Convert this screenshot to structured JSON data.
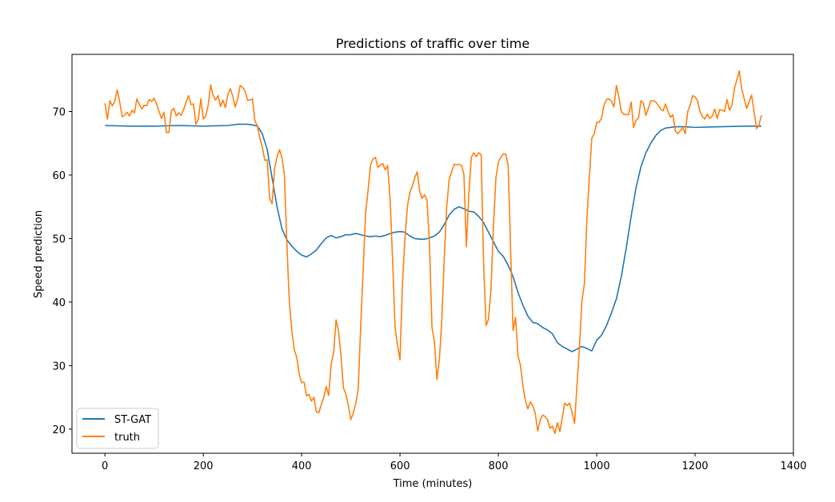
{
  "chart_data": {
    "type": "line",
    "title": "Predictions of traffic over time",
    "xlabel": "Time (minutes)",
    "ylabel": "Speed prediction",
    "xlim": [
      -67,
      1400
    ],
    "ylim": [
      16.2,
      79.0
    ],
    "xticks": [
      0,
      200,
      400,
      600,
      800,
      1000,
      1200,
      1400
    ],
    "yticks": [
      20,
      30,
      40,
      50,
      60,
      70
    ],
    "grid": false,
    "legend_position": "lower-left",
    "series": [
      {
        "name": "ST-GAT",
        "color": "#1f77b4",
        "x": [
          0,
          50,
          100,
          150,
          200,
          250,
          270,
          290,
          300,
          310,
          320,
          330,
          340,
          350,
          360,
          370,
          380,
          390,
          400,
          410,
          420,
          430,
          440,
          450,
          460,
          470,
          480,
          490,
          500,
          510,
          520,
          530,
          540,
          550,
          560,
          570,
          580,
          590,
          600,
          610,
          620,
          630,
          640,
          650,
          660,
          670,
          680,
          690,
          700,
          710,
          720,
          730,
          740,
          750,
          760,
          770,
          780,
          790,
          800,
          810,
          820,
          830,
          840,
          850,
          860,
          870,
          880,
          890,
          900,
          910,
          920,
          930,
          940,
          950,
          960,
          970,
          980,
          990,
          1000,
          1010,
          1020,
          1030,
          1040,
          1050,
          1060,
          1070,
          1080,
          1090,
          1100,
          1110,
          1120,
          1130,
          1140,
          1160,
          1180,
          1200,
          1250,
          1300,
          1335
        ],
        "values": [
          67.8,
          67.7,
          67.7,
          67.8,
          67.7,
          67.8,
          68.0,
          68.0,
          67.9,
          67.7,
          66.5,
          64.0,
          59.5,
          55.0,
          51.5,
          49.8,
          48.8,
          48.0,
          47.4,
          47.1,
          47.6,
          48.2,
          49.2,
          50.1,
          50.5,
          50.1,
          50.3,
          50.6,
          50.6,
          50.8,
          50.6,
          50.4,
          50.3,
          50.4,
          50.3,
          50.5,
          50.8,
          51.0,
          51.1,
          51.0,
          50.4,
          50.0,
          49.9,
          49.9,
          50.1,
          50.4,
          51.0,
          52.2,
          53.7,
          54.6,
          55.0,
          54.7,
          54.3,
          54.2,
          53.5,
          52.5,
          51.0,
          49.5,
          48.0,
          47.2,
          45.8,
          44.0,
          41.5,
          39.5,
          37.8,
          36.8,
          36.6,
          36.0,
          35.6,
          35.0,
          33.6,
          33.0,
          32.6,
          32.2,
          32.6,
          33.0,
          32.7,
          32.3,
          34.0,
          34.8,
          36.3,
          38.3,
          40.5,
          44.0,
          48.5,
          53.5,
          58.0,
          61.3,
          63.5,
          65.0,
          66.2,
          67.0,
          67.4,
          67.6,
          67.6,
          67.5,
          67.6,
          67.7,
          67.7
        ]
      },
      {
        "name": "truth",
        "color": "#ff7f0e",
        "x": [
          0,
          5,
          10,
          15,
          20,
          25,
          30,
          35,
          40,
          45,
          50,
          55,
          60,
          65,
          70,
          75,
          80,
          85,
          90,
          95,
          100,
          105,
          110,
          115,
          120,
          125,
          130,
          135,
          140,
          145,
          150,
          155,
          160,
          165,
          170,
          175,
          180,
          185,
          190,
          195,
          200,
          205,
          210,
          215,
          220,
          225,
          230,
          235,
          240,
          245,
          250,
          255,
          260,
          265,
          270,
          275,
          280,
          285,
          290,
          295,
          300,
          305,
          310,
          315,
          320,
          325,
          330,
          335,
          340,
          345,
          350,
          355,
          360,
          365,
          370,
          375,
          380,
          385,
          390,
          395,
          400,
          405,
          410,
          415,
          420,
          425,
          430,
          435,
          440,
          445,
          450,
          455,
          460,
          465,
          470,
          475,
          480,
          485,
          490,
          495,
          500,
          505,
          510,
          515,
          520,
          525,
          530,
          535,
          540,
          545,
          550,
          555,
          560,
          565,
          570,
          575,
          580,
          585,
          590,
          595,
          600,
          605,
          610,
          615,
          620,
          625,
          630,
          635,
          640,
          645,
          650,
          655,
          660,
          665,
          670,
          675,
          680,
          685,
          690,
          695,
          700,
          705,
          710,
          715,
          720,
          725,
          730,
          735,
          740,
          745,
          750,
          755,
          760,
          765,
          770,
          775,
          780,
          785,
          790,
          795,
          800,
          805,
          810,
          815,
          820,
          825,
          830,
          835,
          840,
          845,
          850,
          855,
          860,
          865,
          870,
          875,
          880,
          885,
          890,
          895,
          900,
          905,
          910,
          915,
          920,
          925,
          930,
          935,
          940,
          945,
          950,
          955,
          960,
          965,
          970,
          975,
          980,
          985,
          990,
          995,
          1000,
          1005,
          1010,
          1015,
          1020,
          1025,
          1030,
          1035,
          1040,
          1045,
          1050,
          1055,
          1060,
          1065,
          1070,
          1075,
          1080,
          1085,
          1090,
          1095,
          1100,
          1105,
          1110,
          1115,
          1120,
          1125,
          1130,
          1135,
          1140,
          1145,
          1150,
          1155,
          1160,
          1165,
          1170,
          1175,
          1180,
          1185,
          1190,
          1195,
          1200,
          1205,
          1210,
          1215,
          1220,
          1225,
          1230,
          1235,
          1240,
          1245,
          1250,
          1255,
          1260,
          1265,
          1270,
          1275,
          1280,
          1285,
          1290,
          1295,
          1300,
          1305,
          1310,
          1315,
          1320,
          1325,
          1330,
          1335
        ],
        "values": [
          71.3,
          68.8,
          71.7,
          70.9,
          71.6,
          73.4,
          71.5,
          69.2,
          69.4,
          69.9,
          69.3,
          70.2,
          69.8,
          72.0,
          71.1,
          70.4,
          71.0,
          70.9,
          71.9,
          71.6,
          72.1,
          71.2,
          70.0,
          68.9,
          69.9,
          66.7,
          66.7,
          70.1,
          70.5,
          69.3,
          69.8,
          69.4,
          70.3,
          71.5,
          72.5,
          71.1,
          71.2,
          68.0,
          68.8,
          72.0,
          68.8,
          69.3,
          71.0,
          74.2,
          72.5,
          71.8,
          72.5,
          70.8,
          71.8,
          70.6,
          72.7,
          73.6,
          72.4,
          70.7,
          72.0,
          74.1,
          73.8,
          73.2,
          71.8,
          71.8,
          72.0,
          68.5,
          67.8,
          65.8,
          64.4,
          62.3,
          62.4,
          56.3,
          55.5,
          61.0,
          62.9,
          64.0,
          62.7,
          60.0,
          49.0,
          40.0,
          35.5,
          32.5,
          31.3,
          28.7,
          27.3,
          27.4,
          25.2,
          25.5,
          24.4,
          25.0,
          22.7,
          22.6,
          23.9,
          25.0,
          26.7,
          25.3,
          30.2,
          32.0,
          37.2,
          35.5,
          31.5,
          26.5,
          25.5,
          23.7,
          21.5,
          22.5,
          24.0,
          26.3,
          36.0,
          45.0,
          54.0,
          57.5,
          61.6,
          62.5,
          62.8,
          61.2,
          61.6,
          61.8,
          60.8,
          61.5,
          56.0,
          46.5,
          36.0,
          33.2,
          30.9,
          43.0,
          50.0,
          55.0,
          57.3,
          58.2,
          59.6,
          60.5,
          57.5,
          56.3,
          56.9,
          56.0,
          49.0,
          36.0,
          33.8,
          27.8,
          30.9,
          37.0,
          47.0,
          55.0,
          59.3,
          60.5,
          61.7,
          61.6,
          61.7,
          61.5,
          60.1,
          48.7,
          57.0,
          62.8,
          63.5,
          62.9,
          63.5,
          63.2,
          46.0,
          36.3,
          37.3,
          42.0,
          52.0,
          59.5,
          62.0,
          62.8,
          63.3,
          63.3,
          61.5,
          48.0,
          35.5,
          37.6,
          31.5,
          30.0,
          26.8,
          24.5,
          23.2,
          24.3,
          23.7,
          22.5,
          19.7,
          21.4,
          22.2,
          22.0,
          21.5,
          20.1,
          20.5,
          19.3,
          21.0,
          19.6,
          21.8,
          24.1,
          23.7,
          24.1,
          22.6,
          20.9,
          27.0,
          33.0,
          40.2,
          42.9,
          53.0,
          59.5,
          65.8,
          66.5,
          68.3,
          68.3,
          69.0,
          71.0,
          71.9,
          72.0,
          71.6,
          70.7,
          74.1,
          72.3,
          70.0,
          69.6,
          69.5,
          69.5,
          71.5,
          67.5,
          68.6,
          69.0,
          71.7,
          71.3,
          69.4,
          70.5,
          71.7,
          71.7,
          71.5,
          71.0,
          70.4,
          70.1,
          71.2,
          70.0,
          69.1,
          69.5,
          66.9,
          66.5,
          67.0,
          67.5,
          66.5,
          70.0,
          71.0,
          72.5,
          72.3,
          71.7,
          70.0,
          69.2,
          68.8,
          69.6,
          68.9,
          69.3,
          70.4,
          68.9,
          70.3,
          70.2,
          70.0,
          71.9,
          70.2,
          71.0,
          73.6,
          75.0,
          76.4,
          73.5,
          72.0,
          70.5,
          71.5,
          72.6,
          70.0,
          67.3,
          67.9,
          69.4
        ]
      }
    ]
  }
}
